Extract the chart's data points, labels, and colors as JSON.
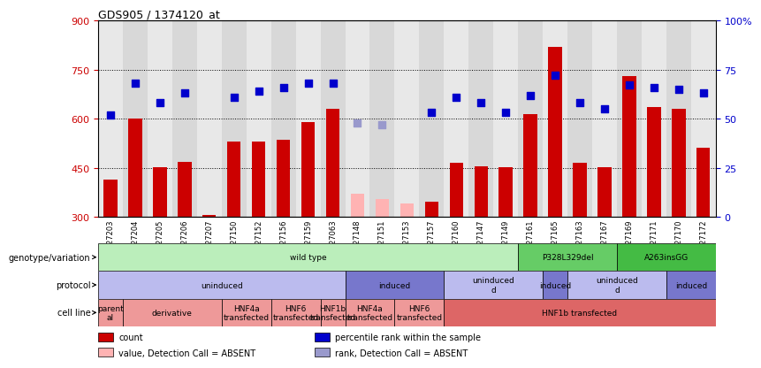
{
  "title": "GDS905 / 1374120_at",
  "samples": [
    "GSM27203",
    "GSM27204",
    "GSM27205",
    "GSM27206",
    "GSM27207",
    "GSM27150",
    "GSM27152",
    "GSM27156",
    "GSM27159",
    "GSM27063",
    "GSM27148",
    "GSM27151",
    "GSM27153",
    "GSM27157",
    "GSM27160",
    "GSM27147",
    "GSM27149",
    "GSM27161",
    "GSM27165",
    "GSM27163",
    "GSM27167",
    "GSM27169",
    "GSM27171",
    "GSM27170",
    "GSM27172"
  ],
  "counts": [
    415,
    600,
    452,
    468,
    305,
    530,
    530,
    535,
    590,
    630,
    null,
    null,
    null,
    345,
    465,
    455,
    452,
    615,
    820,
    465,
    452,
    730,
    635,
    630,
    510
  ],
  "absent_counts": [
    null,
    null,
    null,
    null,
    null,
    null,
    null,
    null,
    null,
    null,
    370,
    355,
    340,
    null,
    null,
    null,
    null,
    null,
    null,
    null,
    null,
    null,
    null,
    null,
    null
  ],
  "ranks": [
    52,
    68,
    58,
    63,
    null,
    61,
    64,
    66,
    68,
    68,
    null,
    null,
    null,
    53,
    61,
    58,
    53,
    62,
    72,
    58,
    55,
    67,
    66,
    65,
    63
  ],
  "absent_ranks": [
    null,
    null,
    null,
    null,
    null,
    null,
    null,
    null,
    null,
    null,
    48,
    47,
    null,
    null,
    null,
    null,
    null,
    null,
    null,
    null,
    null,
    null,
    null,
    null,
    null
  ],
  "ylim_left": [
    300,
    900
  ],
  "ylim_right": [
    0,
    100
  ],
  "yticks_left": [
    300,
    450,
    600,
    750,
    900
  ],
  "yticks_right": [
    0,
    25,
    50,
    75,
    100
  ],
  "bar_color": "#cc0000",
  "absent_bar_color": "#ffb3b3",
  "rank_color": "#0000cc",
  "absent_rank_color": "#9999cc",
  "dot_size": 30,
  "bar_width": 0.55,
  "col_colors": [
    "#e8e8e8",
    "#d8d8d8"
  ],
  "genotype_row": {
    "label": "genotype/variation",
    "segments": [
      {
        "text": "wild type",
        "start": 0,
        "end": 17,
        "color": "#bbeebb"
      },
      {
        "text": "P328L329del",
        "start": 17,
        "end": 21,
        "color": "#66cc66"
      },
      {
        "text": "A263insGG",
        "start": 21,
        "end": 25,
        "color": "#44bb44"
      }
    ]
  },
  "protocol_row": {
    "label": "protocol",
    "segments": [
      {
        "text": "uninduced",
        "start": 0,
        "end": 10,
        "color": "#bbbbee"
      },
      {
        "text": "induced",
        "start": 10,
        "end": 14,
        "color": "#7777cc"
      },
      {
        "text": "uninduced\nd",
        "start": 14,
        "end": 18,
        "color": "#bbbbee"
      },
      {
        "text": "induced",
        "start": 18,
        "end": 19,
        "color": "#7777cc"
      },
      {
        "text": "uninduced\nd",
        "start": 19,
        "end": 23,
        "color": "#bbbbee"
      },
      {
        "text": "induced",
        "start": 23,
        "end": 25,
        "color": "#7777cc"
      }
    ]
  },
  "cellline_row": {
    "label": "cell line",
    "segments": [
      {
        "text": "parent\nal",
        "start": 0,
        "end": 1,
        "color": "#ee9999"
      },
      {
        "text": "derivative",
        "start": 1,
        "end": 5,
        "color": "#ee9999"
      },
      {
        "text": "HNF4a\ntransfected",
        "start": 5,
        "end": 7,
        "color": "#ee9999"
      },
      {
        "text": "HNF6\ntransfected",
        "start": 7,
        "end": 9,
        "color": "#ee9999"
      },
      {
        "text": "HNF1b\ntransfected",
        "start": 9,
        "end": 10,
        "color": "#ee9999"
      },
      {
        "text": "HNF4a\ntransfected",
        "start": 10,
        "end": 12,
        "color": "#ee9999"
      },
      {
        "text": "HNF6\ntransfected",
        "start": 12,
        "end": 14,
        "color": "#ee9999"
      },
      {
        "text": "HNF1b transfected",
        "start": 14,
        "end": 25,
        "color": "#dd6666"
      }
    ]
  },
  "legend_items": [
    {
      "label": "count",
      "color": "#cc0000"
    },
    {
      "label": "percentile rank within the sample",
      "color": "#0000cc"
    },
    {
      "label": "value, Detection Call = ABSENT",
      "color": "#ffb3b3"
    },
    {
      "label": "rank, Detection Call = ABSENT",
      "color": "#9999cc"
    }
  ],
  "background_color": "#ffffff"
}
